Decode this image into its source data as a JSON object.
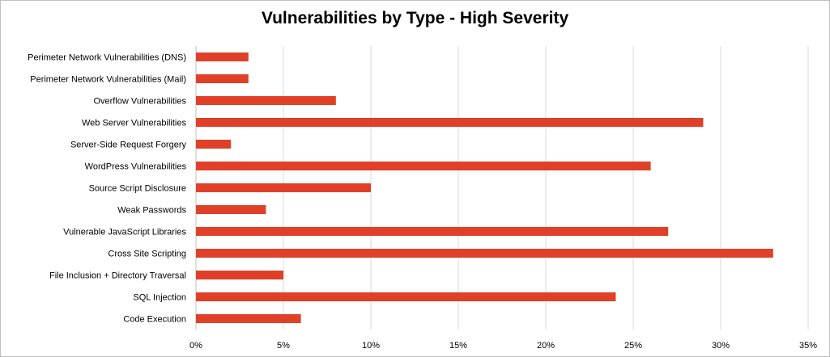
{
  "chart_data": {
    "type": "bar",
    "orientation": "horizontal",
    "title": "Vulnerabilities by Type - High Severity",
    "xlabel": "",
    "ylabel": "",
    "categories": [
      "Perimeter Network Vulnerabilities (DNS)",
      "Perimeter Network Vulnerabilities (Mail)",
      "Overflow Vulnerabilities",
      "Web Server Vulnerabilities",
      "Server-Side Request Forgery",
      "WordPress Vulnerabilities",
      "Source Script Disclosure",
      "Weak Passwords",
      "Vulnerable JavaScript Libraries",
      "Cross Site Scripting",
      "File Inclusion + Directory Traversal",
      "SQL Injection",
      "Code Execution"
    ],
    "values": [
      3,
      3,
      8,
      29,
      2,
      26,
      10,
      4,
      27,
      33,
      5,
      24,
      6
    ],
    "xlim": [
      0,
      35
    ],
    "xticks": [
      "0%",
      "5%",
      "10%",
      "15%",
      "20%",
      "25%",
      "30%",
      "35%"
    ],
    "grid": "vertical",
    "legend": "none",
    "bar_color": "#E04028"
  }
}
